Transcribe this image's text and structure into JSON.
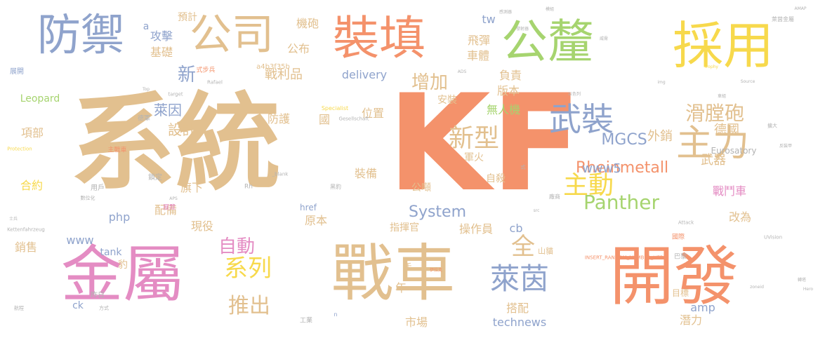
{
  "palette": {
    "tan": "#e2c08f",
    "coral": "#f4926b",
    "blue": "#8fa3cc",
    "pink": "#e48cc3",
    "green": "#a6d46f",
    "yellow": "#f7d94c",
    "teal": "#66c2a5",
    "grey": "#b3b3b3"
  },
  "words": [
    {
      "text": "系統",
      "color": "#e2c08f"
    },
    {
      "text": "KF",
      "color": "#f4926b"
    },
    {
      "text": "開發",
      "color": "#f4926b"
    },
    {
      "text": "戰車",
      "color": "#e2c08f"
    },
    {
      "text": "金屬",
      "color": "#e48cc3"
    },
    {
      "text": "採用",
      "color": "#f7d94c"
    },
    {
      "text": "公釐",
      "color": "#a6d46f"
    },
    {
      "text": "裝填",
      "color": "#f4926b"
    },
    {
      "text": "公司",
      "color": "#e2c08f"
    },
    {
      "text": "防禦",
      "color": "#8fa3cc"
    },
    {
      "text": "主力",
      "color": "#e2c08f"
    },
    {
      "text": "武裝",
      "color": "#8fa3cc"
    },
    {
      "text": "Panther",
      "color": "#a6d46f"
    },
    {
      "text": "主動",
      "color": "#f7d94c"
    },
    {
      "text": "系列",
      "color": "#f7d94c"
    },
    {
      "text": "萊茵",
      "color": "#8fa3cc"
    },
    {
      "text": "新型",
      "color": "#e2c08f"
    },
    {
      "text": "推出",
      "color": "#e2c08f"
    },
    {
      "text": "滑膛砲",
      "color": "#e2c08f"
    },
    {
      "text": "增加",
      "color": "#e2c08f"
    },
    {
      "text": "Rheinmetall",
      "color": "#f4926b"
    },
    {
      "text": "MGCS",
      "color": "#8fa3cc"
    },
    {
      "text": "全",
      "color": "#e2c08f"
    },
    {
      "text": "自動",
      "color": "#e48cc3"
    },
    {
      "text": "System",
      "color": "#8fa3cc"
    },
    {
      "text": "萊因",
      "color": "#8fa3cc"
    },
    {
      "text": "設計",
      "color": "#e2c08f"
    },
    {
      "text": "新",
      "color": "#8fa3cc"
    },
    {
      "text": "戰利品",
      "color": "#e2c08f"
    },
    {
      "text": "基礎",
      "color": "#e2c08f"
    },
    {
      "text": "攻擊",
      "color": "#8fa3cc"
    },
    {
      "text": "機砲",
      "color": "#e2c08f"
    },
    {
      "text": "預計",
      "color": "#e2c08f"
    },
    {
      "text": "公布",
      "color": "#e2c08f"
    },
    {
      "text": "delivery",
      "color": "#8fa3cc"
    },
    {
      "text": "位置",
      "color": "#e2c08f"
    },
    {
      "text": "安裝",
      "color": "#e2c08f"
    },
    {
      "text": "無人機",
      "color": "#a6d46f"
    },
    {
      "text": "版本",
      "color": "#e2c08f"
    },
    {
      "text": "負責",
      "color": "#e2c08f"
    },
    {
      "text": "飛彈",
      "color": "#e2c08f"
    },
    {
      "text": "車體",
      "color": "#e2c08f"
    },
    {
      "text": "tw",
      "color": "#8fa3cc"
    },
    {
      "text": "德國",
      "color": "#e2c08f"
    },
    {
      "text": "外銷",
      "color": "#e2c08f"
    },
    {
      "text": "www5",
      "color": "#8fa3cc"
    },
    {
      "text": "Eurosatory",
      "color": "#b3b3b3"
    },
    {
      "text": "武器",
      "color": "#e2c08f"
    },
    {
      "text": "戰鬥車",
      "color": "#e48cc3"
    },
    {
      "text": "改為",
      "color": "#e2c08f"
    },
    {
      "text": "項部",
      "color": "#e2c08f"
    },
    {
      "text": "防護",
      "color": "#e2c08f"
    },
    {
      "text": "國",
      "color": "#e2c08f"
    },
    {
      "text": "裝備",
      "color": "#e2c08f"
    },
    {
      "text": "軍火",
      "color": "#e2c08f"
    },
    {
      "text": "自殺",
      "color": "#e2c08f"
    },
    {
      "text": "公噸",
      "color": "#e2c08f"
    },
    {
      "text": "旗下",
      "color": "#e2c08f"
    },
    {
      "text": "合約",
      "color": "#f7d94c"
    },
    {
      "text": "配備",
      "color": "#e2c08f"
    },
    {
      "text": "php",
      "color": "#8fa3cc"
    },
    {
      "text": "現役",
      "color": "#e2c08f"
    },
    {
      "text": "原本",
      "color": "#e2c08f"
    },
    {
      "text": "指揮官",
      "color": "#e2c08f"
    },
    {
      "text": "操作員",
      "color": "#e2c08f"
    },
    {
      "text": "www",
      "color": "#8fa3cc"
    },
    {
      "text": "tank",
      "color": "#8fa3cc"
    },
    {
      "text": "銷售",
      "color": "#e2c08f"
    },
    {
      "text": "豹",
      "color": "#e2c08f"
    },
    {
      "text": "手",
      "color": "#e2c08f"
    },
    {
      "text": "年",
      "color": "#e2c08f"
    },
    {
      "text": "市場",
      "color": "#e2c08f"
    },
    {
      "text": "搭配",
      "color": "#e2c08f"
    },
    {
      "text": "technews",
      "color": "#8fa3cc"
    },
    {
      "text": "amp",
      "color": "#8fa3cc"
    },
    {
      "text": "潛力",
      "color": "#e2c08f"
    },
    {
      "text": "Leopard",
      "color": "#a6d46f"
    },
    {
      "text": "ck",
      "color": "#8fa3cc"
    },
    {
      "text": "昨日",
      "color": "#b3b3b3"
    },
    {
      "text": "a4b3f35b",
      "color": "#e2c08f"
    },
    {
      "text": "cb",
      "color": "#8fa3cc"
    },
    {
      "text": "山貓",
      "color": "#e2c08f"
    },
    {
      "text": "目標",
      "color": "#e2c08f"
    },
    {
      "text": "href",
      "color": "#8fa3cc"
    },
    {
      "text": "展開",
      "color": "#8fa3cc"
    },
    {
      "text": "用戶",
      "color": "#b3b3b3"
    },
    {
      "text": "鎖定",
      "color": "#b3b3b3"
    },
    {
      "text": "展覽",
      "color": "#e48cc3"
    },
    {
      "text": "主戰車",
      "color": "#f4926b"
    },
    {
      "text": "德軍",
      "color": "#b3b3b3"
    },
    {
      "text": "Specialist",
      "color": "#f7d94c"
    },
    {
      "text": "Gesellschaft",
      "color": "#b3b3b3"
    },
    {
      "text": "Rafael",
      "color": "#b3b3b3"
    },
    {
      "text": "target",
      "color": "#b3b3b3"
    },
    {
      "text": "Top",
      "color": "#b3b3b3"
    },
    {
      "text": "Protection",
      "color": "#f7d94c"
    },
    {
      "text": "_blank",
      "color": "#b3b3b3"
    },
    {
      "text": "Kettenfahrzeug",
      "color": "#b3b3b3"
    },
    {
      "text": "INSERT_RANDOM_NUMBER_HERE",
      "color": "#f4926b"
    },
    {
      "text": "Attack",
      "color": "#b3b3b3"
    },
    {
      "text": "UVision",
      "color": "#b3b3b3"
    },
    {
      "text": "Source",
      "color": "#b3b3b3"
    },
    {
      "text": "Trophy",
      "color": "#f7d94c"
    },
    {
      "text": "AMAP",
      "color": "#b3b3b3"
    },
    {
      "text": "Hero",
      "color": "#b3b3b3"
    },
    {
      "text": "zoneid",
      "color": "#b3b3b3"
    },
    {
      "text": "APS",
      "color": "#b3b3b3"
    },
    {
      "text": "ADS",
      "color": "#b3b3b3"
    },
    {
      "text": "img",
      "color": "#b3b3b3"
    },
    {
      "text": "src",
      "color": "#b3b3b3"
    },
    {
      "text": "a",
      "color": "#8fa3cc"
    },
    {
      "text": "Rh",
      "color": "#b3b3b3"
    },
    {
      "text": "n",
      "color": "#8fa3cc"
    },
    {
      "text": "式步兵",
      "color": "#f4926b"
    },
    {
      "text": "工業",
      "color": "#b3b3b3"
    },
    {
      "text": "萊茵金屬",
      "color": "#b3b3b3"
    },
    {
      "text": "以色列",
      "color": "#b3b3b3"
    },
    {
      "text": "黑豹",
      "color": "#b3b3b3"
    },
    {
      "text": "廠商",
      "color": "#b3b3b3"
    },
    {
      "text": "國際",
      "color": "#f4926b"
    },
    {
      "text": "巴黎",
      "color": "#b3b3b3"
    },
    {
      "text": "式",
      "color": "#b3b3b3"
    },
    {
      "text": "方式",
      "color": "#b3b3b3"
    },
    {
      "text": "航程",
      "color": "#b3b3b3"
    },
    {
      "text": "轉塔",
      "color": "#b3b3b3"
    },
    {
      "text": "伊拉克",
      "color": "#f4926b"
    },
    {
      "text": "發射器",
      "color": "#b3b3b3"
    },
    {
      "text": "反裝甲",
      "color": "#b3b3b3"
    },
    {
      "text": "擴大",
      "color": "#b3b3b3"
    },
    {
      "text": "威脅",
      "color": "#b3b3b3"
    },
    {
      "text": "車組",
      "color": "#b3b3b3"
    },
    {
      "text": "數位化",
      "color": "#b3b3b3"
    },
    {
      "text": "感測器",
      "color": "#b3b3b3"
    },
    {
      "text": "模組",
      "color": "#b3b3b3"
    },
    {
      "text": "士兵",
      "color": "#b3b3b3"
    }
  ]
}
